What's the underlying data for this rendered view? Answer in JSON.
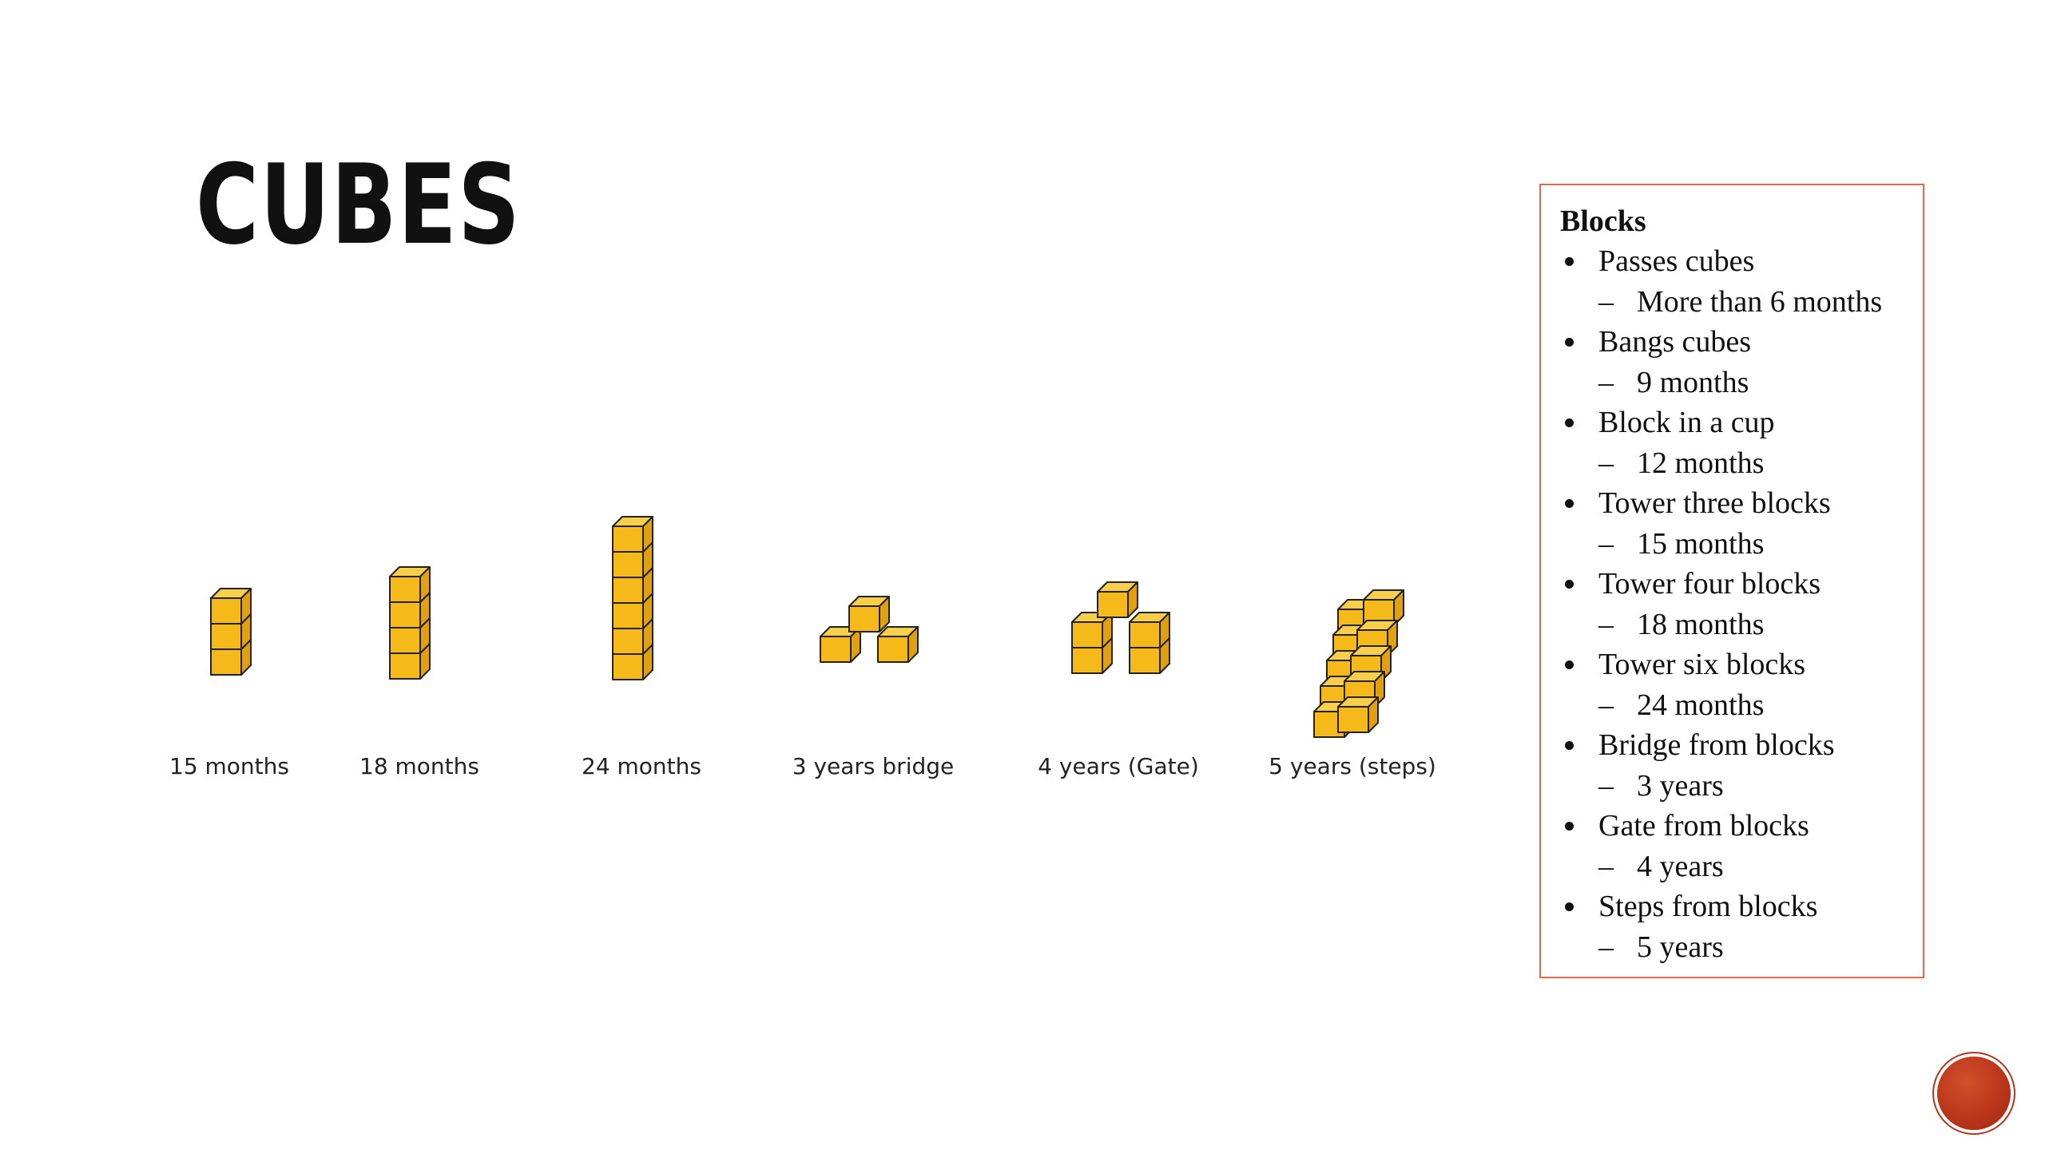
{
  "slide": {
    "title": "Cubes"
  },
  "figures": [
    {
      "label": "15 months",
      "structure": "tower",
      "cubes": 3
    },
    {
      "label": "18 months",
      "structure": "tower",
      "cubes": 4
    },
    {
      "label": "24 months",
      "structure": "tower",
      "cubes": 6
    },
    {
      "label": "3 years bridge",
      "structure": "bridge",
      "cubes": 3
    },
    {
      "label": "4 years (Gate)",
      "structure": "gate",
      "cubes": 5
    },
    {
      "label": "5 years (steps)",
      "structure": "steps",
      "cubes": 10
    }
  ],
  "blocks": {
    "title": "Blocks",
    "items": [
      {
        "label": "Passes cubes",
        "age": "More than 6 months"
      },
      {
        "label": "Bangs cubes",
        "age": "9 months"
      },
      {
        "label": "Block in a cup",
        "age": "12 months"
      },
      {
        "label": "Tower three blocks",
        "age": "15 months"
      },
      {
        "label": "Tower four blocks",
        "age": "18 months"
      },
      {
        "label": "Tower six blocks",
        "age": "24 months"
      },
      {
        "label": "Bridge from blocks",
        "age": "3 years"
      },
      {
        "label": "Gate from blocks",
        "age": "4 years"
      },
      {
        "label": "Steps from blocks",
        "age": "5 years"
      }
    ],
    "dash": "–"
  },
  "colors": {
    "cube_front": "#f5b91a",
    "cube_top": "#f8cf4a",
    "cube_side": "#e0a010",
    "box_border": "#e2674d",
    "nav_button": "#b8341a"
  },
  "icons": {
    "nav": "circle-button"
  }
}
